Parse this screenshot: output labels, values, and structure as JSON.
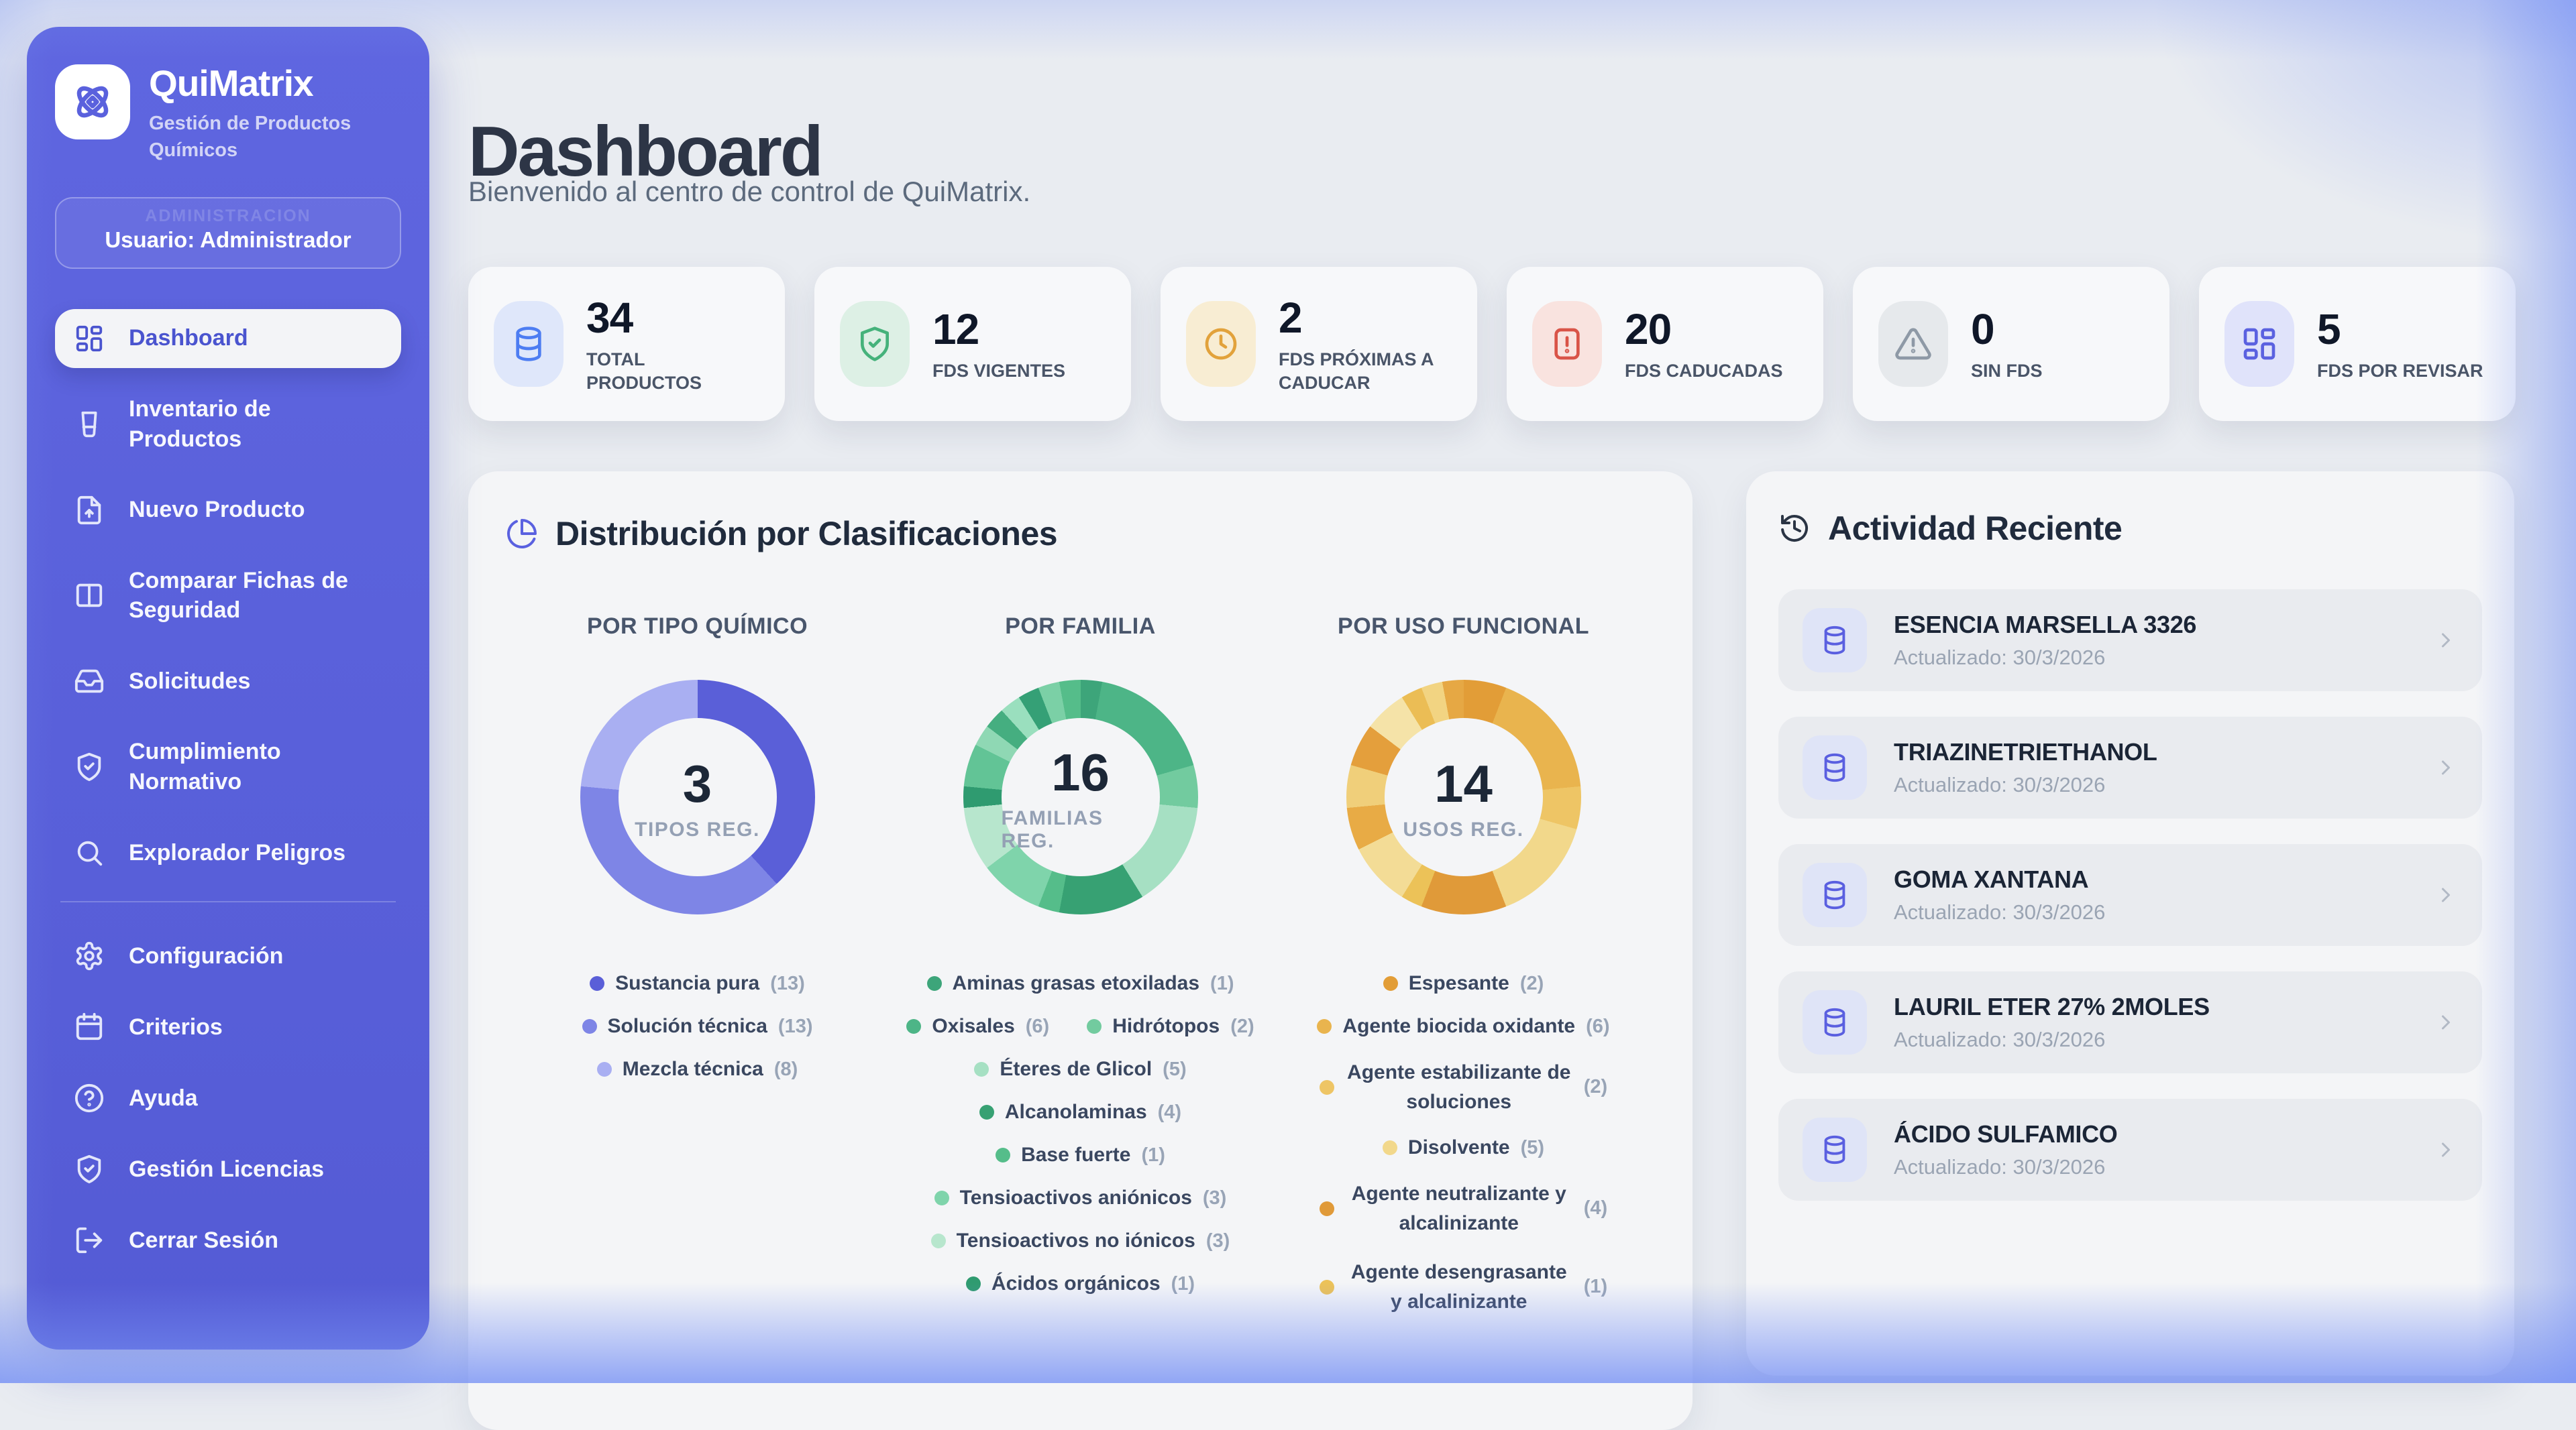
{
  "app": {
    "name": "QuiMatrix",
    "tagline": "Gestión de Productos Químicos"
  },
  "sidebar": {
    "user_box": {
      "watermark": "ADMINISTRACION",
      "label": "Usuario: Administrador"
    },
    "items": [
      {
        "id": "dashboard",
        "label": "Dashboard",
        "icon": "layout-dashboard",
        "active": true
      },
      {
        "id": "inventario-productos",
        "label": "Inventario de Productos",
        "icon": "beaker"
      },
      {
        "id": "nuevo-producto",
        "label": "Nuevo Producto",
        "icon": "file-up"
      },
      {
        "id": "comparar-fds",
        "label": "Comparar Fichas de Seguridad",
        "icon": "columns"
      },
      {
        "id": "solicitudes",
        "label": "Solicitudes",
        "icon": "inbox"
      },
      {
        "id": "cumplimiento-normativo",
        "label": "Cumplimiento Normativo",
        "icon": "shield-check"
      },
      {
        "id": "explorador-peligros",
        "label": "Explorador Peligros",
        "icon": "search"
      },
      {
        "divider": true
      },
      {
        "id": "configuracion",
        "label": "Configuración",
        "icon": "gear"
      },
      {
        "id": "criterios",
        "label": "Criterios",
        "icon": "calendar"
      },
      {
        "id": "ayuda",
        "label": "Ayuda",
        "icon": "help"
      },
      {
        "id": "gestion-licencias",
        "label": "Gestión Licencias",
        "icon": "shield-check"
      },
      {
        "id": "cerrar-sesion",
        "label": "Cerrar Sesión",
        "icon": "log-out"
      }
    ]
  },
  "header": {
    "title": "Dashboard",
    "subtitle": "Bienvenido al centro de control de QuiMatrix."
  },
  "stats": [
    {
      "value": "34",
      "label": "TOTAL PRODUCTOS",
      "icon": "database",
      "icon_color": "#4d7df2",
      "chip_bg": "#dfe7fa"
    },
    {
      "value": "12",
      "label": "FDS VIGENTES",
      "icon": "shield-check",
      "icon_color": "#45b27b",
      "chip_bg": "#ddf0e5"
    },
    {
      "value": "2",
      "label": "FDS PRÓXIMAS A CADUCAR",
      "icon": "clock",
      "icon_color": "#e2a23b",
      "chip_bg": "#f8edd3"
    },
    {
      "value": "20",
      "label": "FDS CADUCADAS",
      "icon": "file-warning",
      "icon_color": "#d95448",
      "chip_bg": "#f9e3df"
    },
    {
      "value": "0",
      "label": "SIN FDS",
      "icon": "triangle-alert",
      "icon_color": "#8e99a6",
      "chip_bg": "#e6e9ec"
    },
    {
      "value": "5",
      "label": "FDS POR REVISAR",
      "icon": "layout-dashboard",
      "icon_color": "#5a61e0",
      "chip_bg": "#e0e3fa"
    }
  ],
  "distribution": {
    "title": "Distribución por Clasificaciones"
  },
  "chart_data": [
    {
      "type": "donut",
      "title": "POR TIPO QUÍMICO",
      "center_value": "3",
      "center_label": "TIPOS REG.",
      "entries": [
        {
          "label": "Sustancia pura",
          "value": 13,
          "color": "#5a5fd8"
        },
        {
          "label": "Solución técnica",
          "value": 13,
          "color": "#7e85e6"
        },
        {
          "label": "Mezcla técnica",
          "value": 8,
          "color": "#a9aff2"
        }
      ],
      "ring": [
        [
          13,
          "#5a5fd8"
        ],
        [
          13,
          "#7e85e6"
        ],
        [
          8,
          "#a9aff2"
        ]
      ]
    },
    {
      "type": "donut",
      "title": "POR FAMILIA",
      "center_value": "16",
      "center_label": "FAMILIAS REG.",
      "entries": [
        {
          "label": "Aminas grasas etoxiladas",
          "value": 1,
          "color": "#3da57a"
        },
        {
          "label": "Oxisales",
          "value": 6,
          "color": "#4db587"
        },
        {
          "label": "Hidrótopos",
          "value": 2,
          "color": "#72cb9f"
        },
        {
          "label": "Éteres de Glicol",
          "value": 5,
          "color": "#a6e0c3"
        },
        {
          "label": "Alcanolaminas",
          "value": 4,
          "color": "#37a173"
        },
        {
          "label": "Base fuerte",
          "value": 1,
          "color": "#55bd8a"
        },
        {
          "label": "Tensioactivos aniónicos",
          "value": 3,
          "color": "#7fd4ab"
        },
        {
          "label": "Tensioactivos no iónicos",
          "value": 3,
          "color": "#b7e6cd"
        },
        {
          "label": "Ácidos orgánicos",
          "value": 1,
          "color": "#2f9b70"
        }
      ],
      "ring": [
        [
          1,
          "#3da57a"
        ],
        [
          6,
          "#4db587"
        ],
        [
          2,
          "#72cb9f"
        ],
        [
          5,
          "#a6e0c3"
        ],
        [
          4,
          "#37a173"
        ],
        [
          1,
          "#55bd8a"
        ],
        [
          3,
          "#7fd4ab"
        ],
        [
          3,
          "#b7e6cd"
        ],
        [
          1,
          "#2f9b70"
        ],
        [
          2,
          "#62c496"
        ],
        [
          1,
          "#8fd8b4"
        ],
        [
          1,
          "#45ae80"
        ],
        [
          1,
          "#9adfbe"
        ],
        [
          1,
          "#35a076"
        ],
        [
          1,
          "#7bd0a6"
        ],
        [
          1,
          "#55bd8a"
        ]
      ]
    },
    {
      "type": "donut",
      "title": "POR USO FUNCIONAL",
      "center_value": "14",
      "center_label": "USOS REG.",
      "entries": [
        {
          "label": "Espesante",
          "value": 2,
          "color": "#e29d37"
        },
        {
          "label": "Agente biocida oxidante",
          "value": 6,
          "color": "#e9b44e"
        },
        {
          "label": "Agente estabilizante de soluciones",
          "value": 2,
          "color": "#eec565"
        },
        {
          "label": "Disolvente",
          "value": 5,
          "color": "#f2d88b"
        },
        {
          "label": "Agente neutralizante y alcalinizante",
          "value": 4,
          "color": "#e09a39"
        },
        {
          "label": "Agente desengrasante y alcalinizante",
          "value": 1,
          "color": "#ecc258"
        }
      ],
      "ring": [
        [
          2,
          "#e29d37"
        ],
        [
          6,
          "#e9b44e"
        ],
        [
          2,
          "#eec565"
        ],
        [
          5,
          "#f2d88b"
        ],
        [
          4,
          "#e09a39"
        ],
        [
          1,
          "#ecc258"
        ],
        [
          3,
          "#f3dc96"
        ],
        [
          2,
          "#e8ab45"
        ],
        [
          2,
          "#f0cf7a"
        ],
        [
          2,
          "#e49f3c"
        ],
        [
          2,
          "#f5e3a8"
        ],
        [
          1,
          "#ebbd55"
        ],
        [
          1,
          "#f2d482"
        ],
        [
          1,
          "#e6a844"
        ]
      ]
    }
  ],
  "activity": {
    "title": "Actividad Reciente",
    "items": [
      {
        "name": "ESENCIA MARSELLA 3326",
        "meta": "Actualizado: 30/3/2026"
      },
      {
        "name": "TRIAZINETRIETHANOL",
        "meta": "Actualizado: 30/3/2026"
      },
      {
        "name": "GOMA XANTANA",
        "meta": "Actualizado: 30/3/2026"
      },
      {
        "name": "LAURIL ETER 27% 2MOLES",
        "meta": "Actualizado: 30/3/2026"
      },
      {
        "name": "ÁCIDO SULFAMICO",
        "meta": "Actualizado: 30/3/2026"
      }
    ]
  },
  "colors": {
    "sidebar": "#5b62dd",
    "accent": "#5a61e0",
    "page_bg": "#e9ecf1",
    "panel_bg": "#f4f5f7",
    "card_bg": "#f7f8fa",
    "item_bg": "#e9ebef",
    "edge_glow": "#7a94f4"
  }
}
